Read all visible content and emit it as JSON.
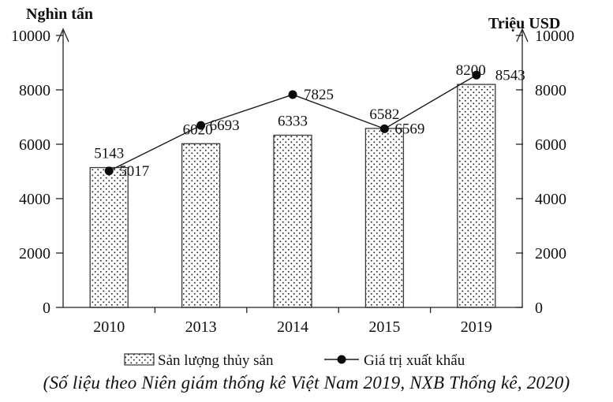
{
  "figure": {
    "caption": "(Số liệu theo Niên giám thống kê Việt Nam 2019, NXB Thống kê, 2020)"
  },
  "chart_data": {
    "type": "bar+line",
    "categories": [
      "2010",
      "2013",
      "2014",
      "2015",
      "2019"
    ],
    "series": [
      {
        "name": "Sản lượng thủy sản",
        "type": "bar",
        "axis": "left",
        "fill": "dotted-hatch-pattern",
        "values": [
          5143,
          6020,
          6333,
          6582,
          8200
        ]
      },
      {
        "name": "Giá trị xuất khẩu",
        "type": "line",
        "axis": "right",
        "marker": "filled-circle",
        "color": "#000000",
        "values": [
          5017,
          6693,
          7825,
          6569,
          8543
        ]
      }
    ],
    "left_axis": {
      "label": "Nghìn tấn",
      "min": 0,
      "max": 10000,
      "tick_step": 2000
    },
    "right_axis": {
      "label": "Triệu USD",
      "min": 0,
      "max": 10000,
      "tick_step": 2000
    },
    "grid": false,
    "legend_position": "bottom",
    "colors": {
      "ink": "#111111",
      "bar_stroke": "#3a3a3a",
      "line": "#1a1a1a"
    }
  }
}
